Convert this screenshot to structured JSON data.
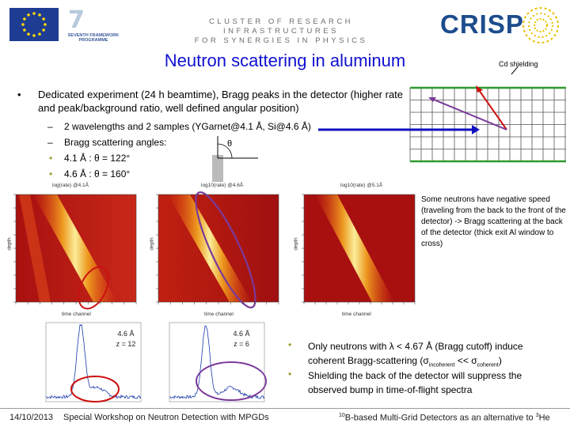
{
  "header": {
    "cluster_line1": "CLUSTER OF RESEARCH INFRASTRUCTURES",
    "cluster_line2": "FOR SYNERGIES IN PHYSICS",
    "crisp_logo": "CRISP",
    "fp7_number": "7",
    "fp7_caption": "SEVENTH FRAMEWORK PROGRAMME"
  },
  "slide": {
    "title": "Neutron scattering in aluminum",
    "cd_label": "Cd shielding",
    "bullet_main": "Dedicated experiment (24 h beamtime), Bragg peaks in the detector (higher rate and peak/background ratio, well defined angular position)",
    "sub_bullets": [
      "2 wavelengths and 2 samples (YGarnet@4.1 Å, Si@4.6 Å)",
      "Bragg scattering angles:",
      "4.1 Å : θ = 122°",
      "4.6 Å : θ = 160°"
    ],
    "theta_symbol": "θ",
    "bullet_dash": "–",
    "bullet_dot": "•",
    "note": "Some neutrons have negative speed (traveling from the back to the front of the detector) -> Bragg scattering at the back of the detector (thick exit Al window to cross)",
    "conclusions": {
      "c1_pre": "Only neutrons with λ < 4.67 Å (Bragg cutoff) induce coherent Bragg-scattering (σ",
      "c1_sub1": "incoherent",
      "c1_mid": " << σ",
      "c1_sub2": "coherent",
      "c1_post": ")",
      "c2": "Shielding the back of the detector will suppress the observed bump in time-of-flight spectra"
    }
  },
  "heatmaps": [
    {
      "title": "log(rate) @4.1Å",
      "ylabel": "depth",
      "xlabel": "time channel"
    },
    {
      "title": "log10(rate) @4.6Å",
      "ylabel": "depth",
      "xlabel": "time channel"
    },
    {
      "title": "log10(rate) @5.1Å",
      "ylabel": "depth",
      "xlabel": "time channel"
    }
  ],
  "peak_plots": [
    {
      "lambda": "4.6 Å",
      "z": "z = 12"
    },
    {
      "lambda": "4.6 Å",
      "z": "z = 6"
    }
  ],
  "footer": {
    "date": "14/10/2013",
    "workshop": "Special Workshop on Neutron Detection with MPGDs",
    "right_sup": "10",
    "right_mid": "B-based Multi-Grid Detectors as an alternative to ",
    "right_sup2": "3",
    "right_end": "He"
  },
  "colors": {
    "title": "#1010d0",
    "crisp": "#1c4c8c",
    "eu_blue": "#1f3c93",
    "red_marker": "#cc1010",
    "purple_marker": "#7a3a9a",
    "grid_green": "#2e9a2e"
  }
}
